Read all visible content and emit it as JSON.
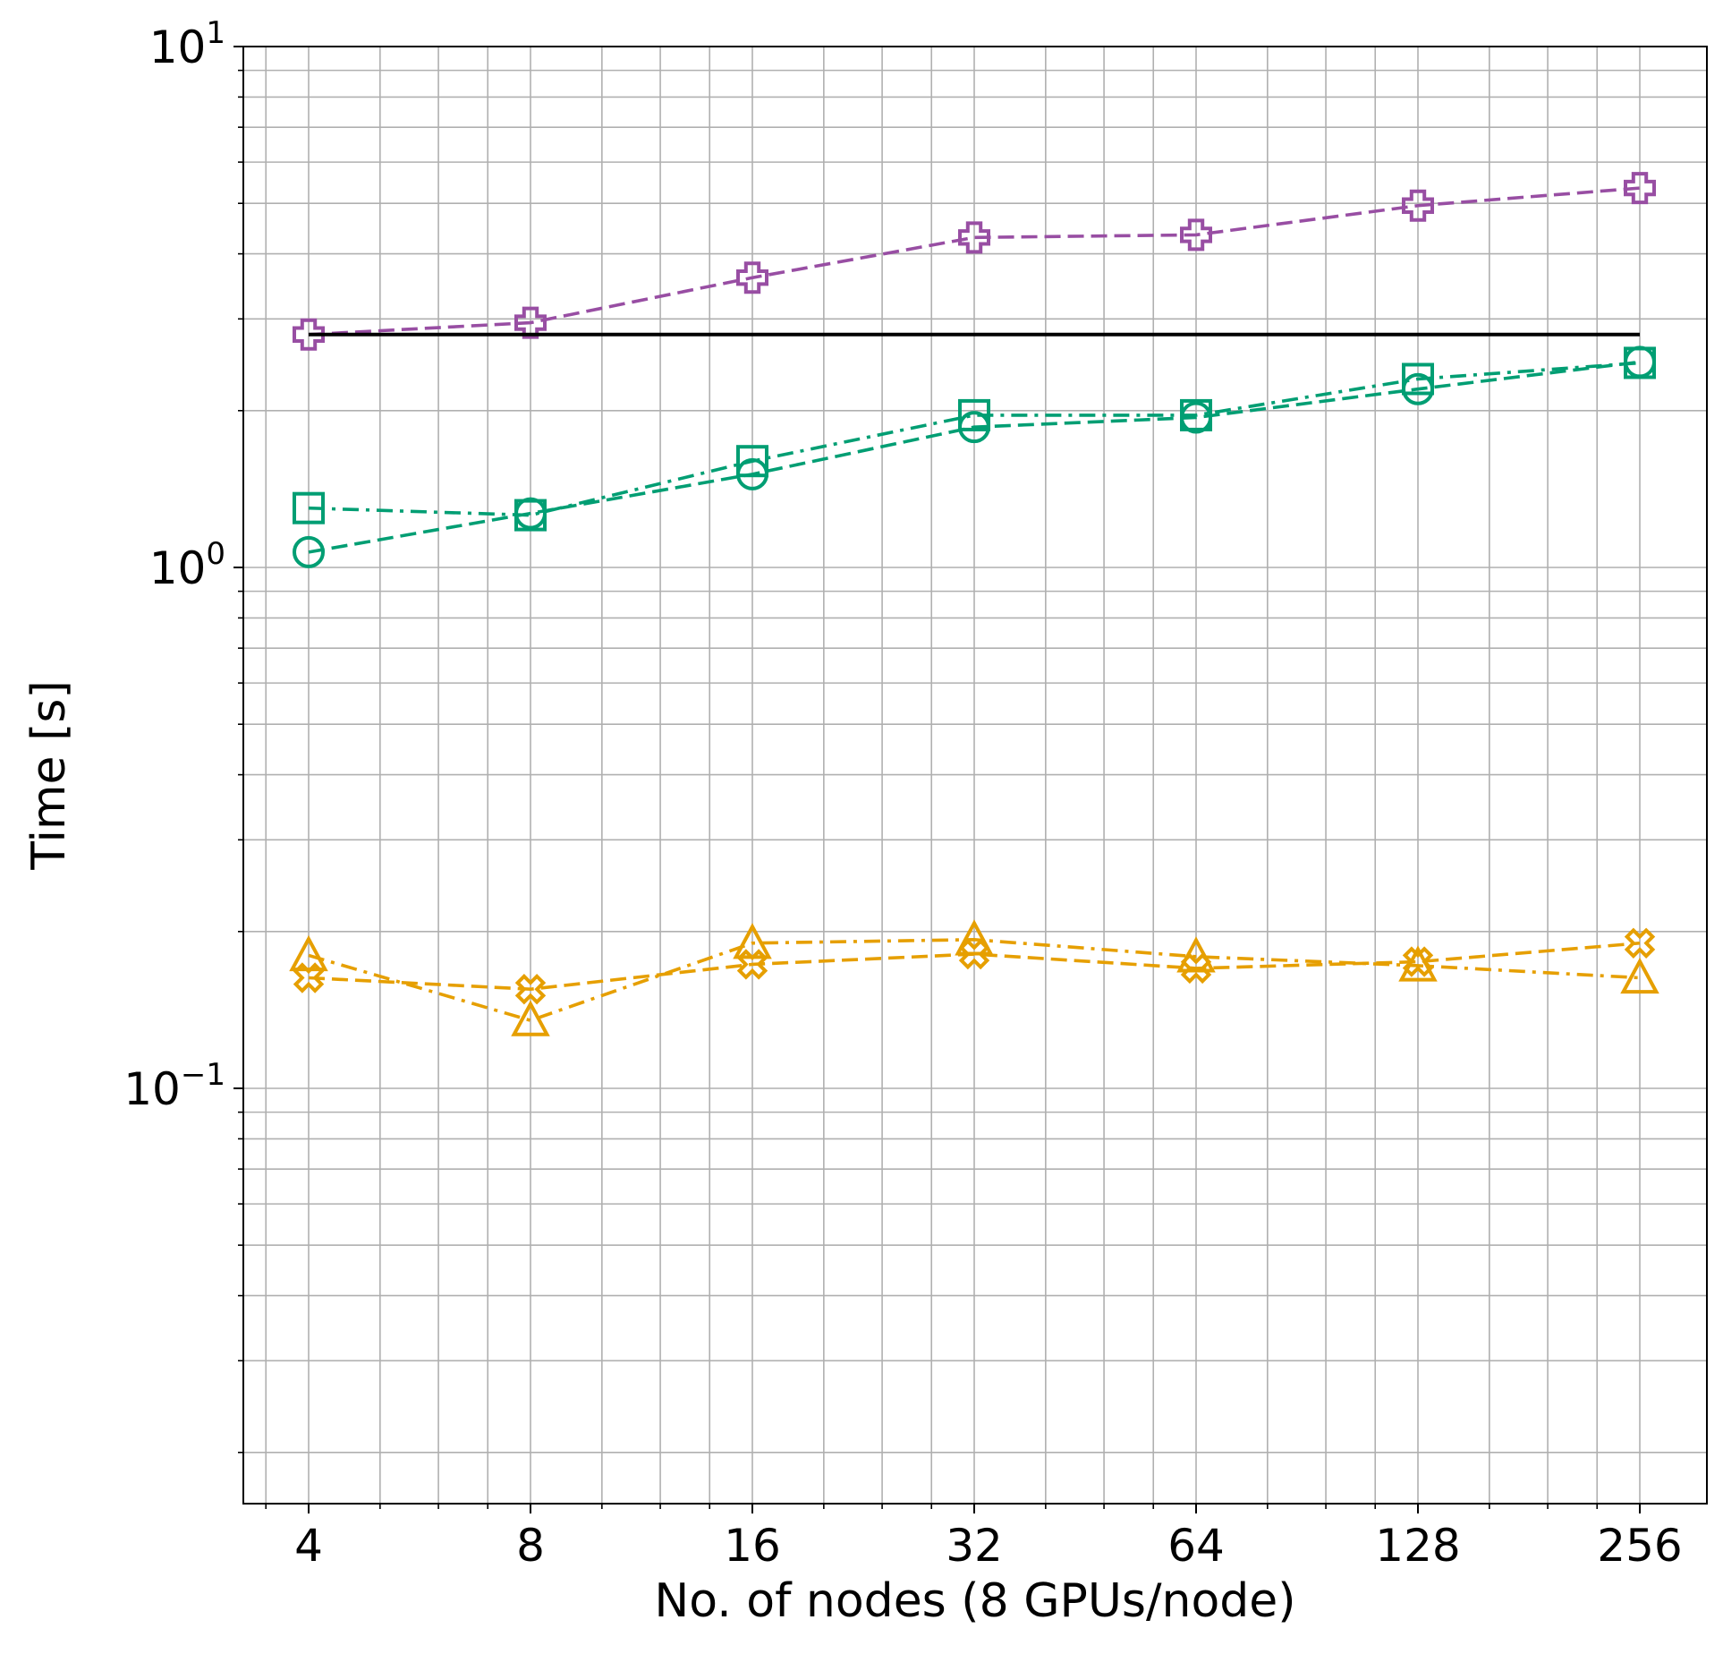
{
  "chart_data": {
    "type": "line",
    "title": "",
    "xlabel": "No. of nodes (8 GPUs/node)",
    "ylabel": "Time [s]",
    "x_scale": "log2",
    "y_scale": "log10",
    "x": [
      4,
      8,
      16,
      32,
      64,
      128,
      256
    ],
    "x_tick_labels": [
      "4",
      "8",
      "16",
      "32",
      "64",
      "128",
      "256"
    ],
    "xlim": [
      3.3,
      300
    ],
    "ylim": [
      0.0157,
      10
    ],
    "y_ticks": [
      {
        "value": 10,
        "base": "10",
        "exp": "1"
      },
      {
        "value": 1,
        "base": "10",
        "exp": "0"
      },
      {
        "value": 0.1,
        "base": "10",
        "exp": "−1"
      }
    ],
    "grid": true,
    "legend": "none",
    "colors": {
      "purple": "#984ea3",
      "green": "#009e73",
      "orange": "#e69f00",
      "black": "#000000",
      "grid": "#b0b0b0"
    },
    "series": [
      {
        "color": "#984ea3",
        "marker": "plus",
        "dash": "dashed",
        "values": [
          2.8,
          2.95,
          3.6,
          4.3,
          4.35,
          4.95,
          5.35
        ]
      },
      {
        "color": "#009e73",
        "marker": "square",
        "dash": "dashdot",
        "values": [
          1.3,
          1.26,
          1.6,
          1.96,
          1.96,
          2.3,
          2.47
        ]
      },
      {
        "color": "#009e73",
        "marker": "circle",
        "dash": "dashed",
        "values": [
          1.07,
          1.27,
          1.51,
          1.86,
          1.94,
          2.2,
          2.48
        ]
      },
      {
        "color": "#e69f00",
        "marker": "triangle",
        "dash": "dashdot",
        "values": [
          0.18,
          0.135,
          0.19,
          0.193,
          0.179,
          0.172,
          0.163
        ]
      },
      {
        "color": "#e69f00",
        "marker": "x",
        "dash": "dashed",
        "values": [
          0.163,
          0.155,
          0.173,
          0.181,
          0.17,
          0.175,
          0.19
        ]
      },
      {
        "color": "#000000",
        "marker": "none",
        "dash": "solid",
        "values": [
          2.8,
          2.8,
          2.8,
          2.8,
          2.8,
          2.8,
          2.8
        ]
      }
    ]
  }
}
